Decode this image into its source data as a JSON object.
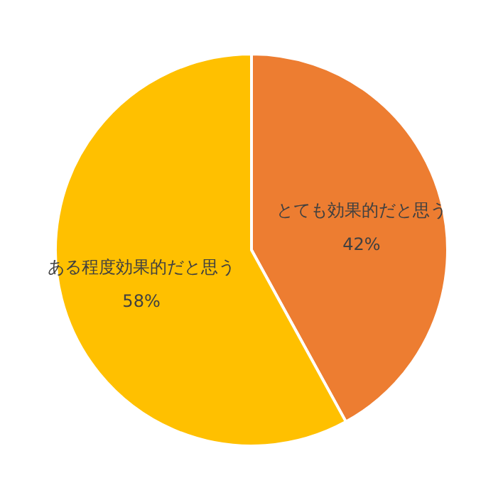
{
  "chart_data": {
    "type": "pie",
    "categories": [
      "とても効果的だと思う",
      "ある程度効果的だと思う"
    ],
    "values": [
      42,
      58
    ],
    "colors": [
      "#ed7d31",
      "#ffc000"
    ],
    "value_labels": [
      "42%",
      "58%"
    ]
  }
}
